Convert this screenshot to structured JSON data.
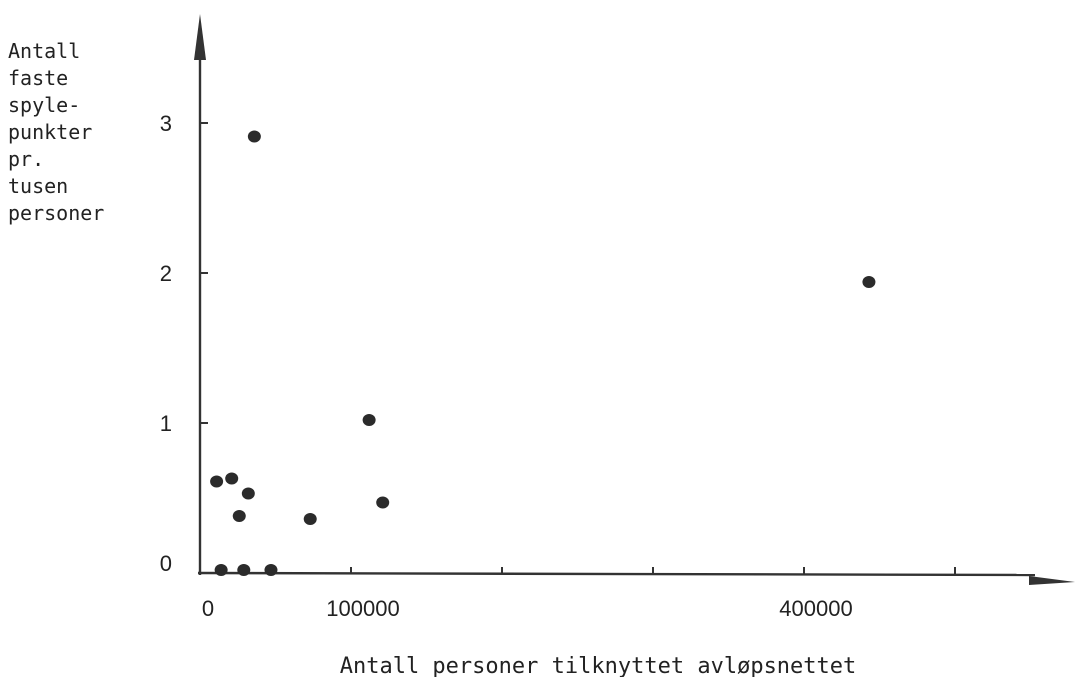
{
  "chart_data": {
    "type": "scatter",
    "title": "",
    "xlabel": "Antall personer tilknyttet avløpsnettet",
    "ylabel_lines": [
      "Antall",
      "faste",
      "spyle-",
      "punkter",
      "pr.",
      "tusen",
      "personer"
    ],
    "x_ticks": [
      0,
      100000,
      200000,
      300000,
      400000,
      500000
    ],
    "x_tick_labels": [
      {
        "value": 0,
        "label": "0"
      },
      {
        "value": 100000,
        "label": "100000"
      },
      {
        "value": 400000,
        "label": "400000"
      }
    ],
    "y_ticks": [
      0,
      1,
      2,
      3
    ],
    "y_tick_labels": [
      "0",
      "1",
      "2",
      "3"
    ],
    "xlim": [
      0,
      580000
    ],
    "ylim": [
      0,
      3.7
    ],
    "grid": false,
    "points": [
      {
        "x": 11000,
        "y": 0.61
      },
      {
        "x": 14000,
        "y": 0.02
      },
      {
        "x": 21000,
        "y": 0.63
      },
      {
        "x": 26000,
        "y": 0.38
      },
      {
        "x": 29000,
        "y": 0.02
      },
      {
        "x": 32000,
        "y": 0.53
      },
      {
        "x": 36000,
        "y": 2.91
      },
      {
        "x": 47000,
        "y": 0.02
      },
      {
        "x": 73000,
        "y": 0.36
      },
      {
        "x": 112000,
        "y": 1.02
      },
      {
        "x": 121000,
        "y": 0.47
      },
      {
        "x": 443000,
        "y": 1.94
      }
    ]
  }
}
